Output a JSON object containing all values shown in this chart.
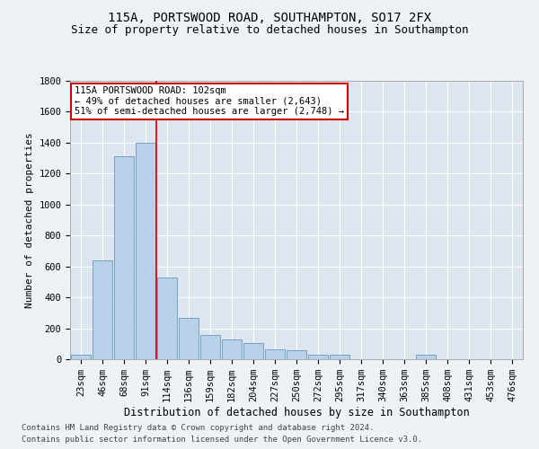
{
  "title1": "115A, PORTSWOOD ROAD, SOUTHAMPTON, SO17 2FX",
  "title2": "Size of property relative to detached houses in Southampton",
  "xlabel": "Distribution of detached houses by size in Southampton",
  "ylabel": "Number of detached properties",
  "categories": [
    "23sqm",
    "46sqm",
    "68sqm",
    "91sqm",
    "114sqm",
    "136sqm",
    "159sqm",
    "182sqm",
    "204sqm",
    "227sqm",
    "250sqm",
    "272sqm",
    "295sqm",
    "317sqm",
    "340sqm",
    "363sqm",
    "385sqm",
    "408sqm",
    "431sqm",
    "453sqm",
    "476sqm"
  ],
  "values": [
    30,
    640,
    1310,
    1400,
    530,
    270,
    155,
    125,
    105,
    65,
    60,
    30,
    30,
    0,
    0,
    0,
    30,
    0,
    0,
    0,
    0
  ],
  "bar_color": "#b8d0e8",
  "bar_edge_color": "#6699bb",
  "vline_color": "#cc0000",
  "annotation_text": "115A PORTSWOOD ROAD: 102sqm\n← 49% of detached houses are smaller (2,643)\n51% of semi-detached houses are larger (2,748) →",
  "annotation_box_color": "#ffffff",
  "annotation_box_edge_color": "#cc0000",
  "ylim": [
    0,
    1800
  ],
  "yticks": [
    0,
    200,
    400,
    600,
    800,
    1000,
    1200,
    1400,
    1600,
    1800
  ],
  "footer1": "Contains HM Land Registry data © Crown copyright and database right 2024.",
  "footer2": "Contains public sector information licensed under the Open Government Licence v3.0.",
  "bg_color": "#eef2f7",
  "plot_bg_color": "#dde6f0",
  "grid_color": "#ffffff",
  "title1_fontsize": 10,
  "title2_fontsize": 9,
  "xlabel_fontsize": 8.5,
  "ylabel_fontsize": 8,
  "tick_fontsize": 7.5,
  "footer_fontsize": 6.5,
  "annot_fontsize": 7.5
}
